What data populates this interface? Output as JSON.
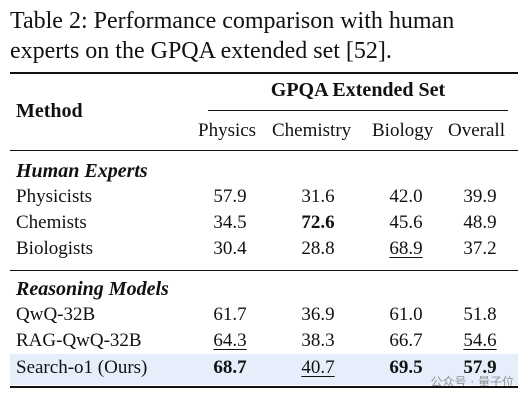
{
  "caption": "Table 2: Performance comparison with human experts on the GPQA extended set [52].",
  "table": {
    "method_header": "Method",
    "group_header": "GPQA Extended Set",
    "columns": [
      "Physics",
      "Chemistry",
      "Biology",
      "Overall"
    ],
    "sections": [
      {
        "title": "Human Experts",
        "rows": [
          {
            "name": "Physicists",
            "values": [
              "57.9",
              "31.6",
              "42.0",
              "39.9"
            ],
            "bold": [
              false,
              false,
              false,
              false
            ],
            "underline": [
              false,
              false,
              false,
              false
            ]
          },
          {
            "name": "Chemists",
            "values": [
              "34.5",
              "72.6",
              "45.6",
              "48.9"
            ],
            "bold": [
              false,
              true,
              false,
              false
            ],
            "underline": [
              false,
              false,
              false,
              false
            ]
          },
          {
            "name": "Biologists",
            "values": [
              "30.4",
              "28.8",
              "68.9",
              "37.2"
            ],
            "bold": [
              false,
              false,
              false,
              false
            ],
            "underline": [
              false,
              false,
              true,
              false
            ]
          }
        ]
      },
      {
        "title": "Reasoning Models",
        "rows": [
          {
            "name": "QwQ-32B",
            "values": [
              "61.7",
              "36.9",
              "61.0",
              "51.8"
            ],
            "bold": [
              false,
              false,
              false,
              false
            ],
            "underline": [
              false,
              false,
              false,
              false
            ]
          },
          {
            "name": "RAG-QwQ-32B",
            "values": [
              "64.3",
              "38.3",
              "66.7",
              "54.6"
            ],
            "bold": [
              false,
              false,
              false,
              false
            ],
            "underline": [
              true,
              false,
              false,
              true
            ]
          },
          {
            "name": "Search-o1 (Ours)",
            "values": [
              "68.7",
              "40.7",
              "69.5",
              "57.9"
            ],
            "bold": [
              true,
              false,
              true,
              true
            ],
            "underline": [
              false,
              true,
              false,
              false
            ]
          }
        ]
      }
    ]
  },
  "watermark": "公众号 · 量子位"
}
